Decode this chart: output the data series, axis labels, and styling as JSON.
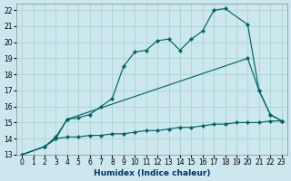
{
  "xlabel": "Humidex (Indice chaleur)",
  "bg_color": "#cce8ee",
  "grid_color": "#aad4cc",
  "line_color": "#006666",
  "xlim": [
    -0.5,
    23.5
  ],
  "ylim": [
    13,
    22.4
  ],
  "xticks": [
    0,
    1,
    2,
    3,
    4,
    5,
    6,
    7,
    8,
    9,
    10,
    11,
    12,
    13,
    14,
    15,
    16,
    17,
    18,
    19,
    20,
    21,
    22,
    23
  ],
  "yticks": [
    13,
    14,
    15,
    16,
    17,
    18,
    19,
    20,
    21,
    22
  ],
  "curve1_x": [
    0,
    2,
    3,
    4,
    5,
    6,
    7,
    8,
    9,
    10,
    11,
    12,
    13,
    14,
    15,
    16,
    17,
    18,
    20,
    21,
    22,
    23
  ],
  "curve1_y": [
    13,
    13.5,
    14.1,
    15.2,
    15.3,
    15.5,
    16.0,
    16.5,
    18.5,
    19.4,
    19.5,
    20.1,
    20.2,
    19.5,
    20.2,
    20.7,
    22.0,
    22.1,
    21.1,
    17.0,
    15.5,
    15.1
  ],
  "curve2_x": [
    0,
    2,
    3,
    4,
    20,
    21,
    22,
    23
  ],
  "curve2_y": [
    13,
    13.5,
    14.0,
    15.2,
    19.0,
    17.0,
    15.5,
    15.1
  ],
  "curve3_x": [
    0,
    2,
    3,
    4,
    5,
    6,
    7,
    8,
    9,
    10,
    11,
    12,
    13,
    14,
    15,
    16,
    17,
    18,
    19,
    20,
    21,
    22,
    23
  ],
  "curve3_y": [
    13,
    13.5,
    14.0,
    14.1,
    14.1,
    14.2,
    14.2,
    14.3,
    14.3,
    14.4,
    14.5,
    14.5,
    14.6,
    14.7,
    14.7,
    14.8,
    14.9,
    14.9,
    15.0,
    15.0,
    15.0,
    15.1,
    15.1
  ]
}
